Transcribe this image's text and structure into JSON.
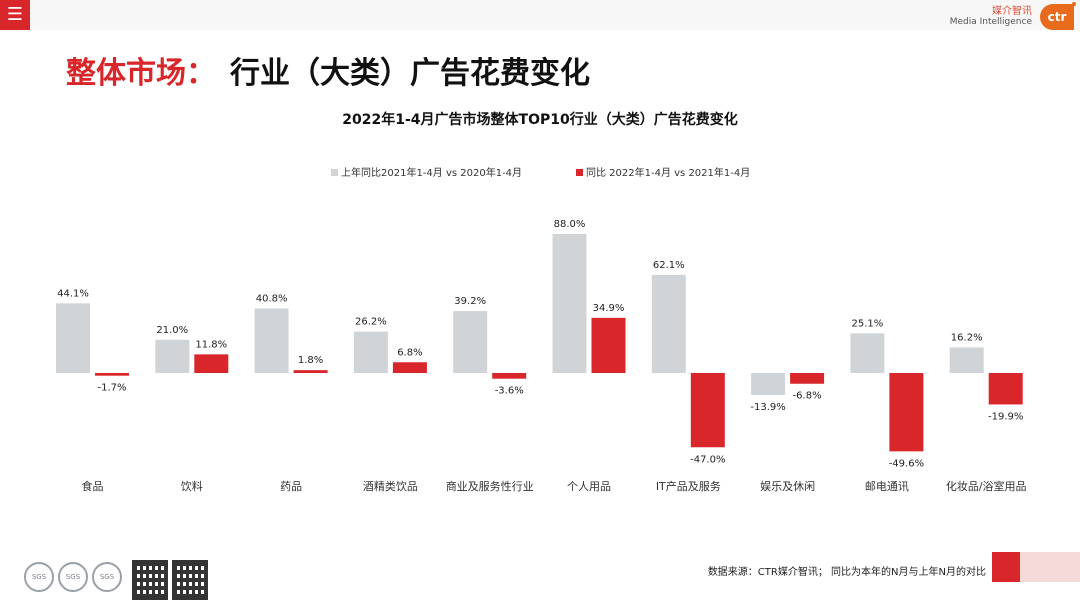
{
  "header": {
    "menu_icon": "menu-icon",
    "brand_cn": "媒介智讯",
    "brand_en": "Media Intelligence",
    "brand_logo": "ctr"
  },
  "page": {
    "title_lead": "整体市场：",
    "title_rest": "行业（大类）广告花费变化"
  },
  "chart_data": {
    "type": "bar",
    "title": "2022年1-4月广告市场整体TOP10行业（大类）广告花费变化",
    "categories": [
      "食品",
      "饮料",
      "药品",
      "酒精类饮品",
      "商业及服务性行业",
      "个人用品",
      "IT产品及服务",
      "娱乐及休闲",
      "邮电通讯",
      "化妆品/浴室用品"
    ],
    "series": [
      {
        "name": "上年同比2021年1-4月  vs  2020年1-4月",
        "color": "#d0d4d6",
        "values": [
          44.1,
          21.0,
          40.8,
          26.2,
          39.2,
          88.0,
          62.1,
          -13.9,
          25.1,
          16.2
        ],
        "labels": [
          "44.1%",
          "21.0%",
          "40.8%",
          "26.2%",
          "39.2%",
          "88.0%",
          "62.1%",
          "-13.9%",
          "25.1%",
          "16.2%"
        ]
      },
      {
        "name": "同比 2022年1-4月  vs  2021年1-4月",
        "color": "#d9262a",
        "values": [
          -1.7,
          11.8,
          1.8,
          6.8,
          -3.6,
          34.9,
          -47.0,
          -6.8,
          -49.6,
          -19.9
        ],
        "labels": [
          "-1.7%",
          "11.8%",
          "1.8%",
          "6.8%",
          "-3.6%",
          "34.9%",
          "-47.0%",
          "-6.8%",
          "-49.6%",
          "-19.9%"
        ]
      }
    ],
    "ylim": [
      -55,
      95
    ],
    "unit": "%",
    "legend_position": "top-center",
    "grid": false
  },
  "footer": {
    "note": "数据来源：CTR媒介智讯；  同比为本年的N月与上年N月的对比",
    "badges": [
      "SGS",
      "SGS",
      "SGS"
    ]
  }
}
